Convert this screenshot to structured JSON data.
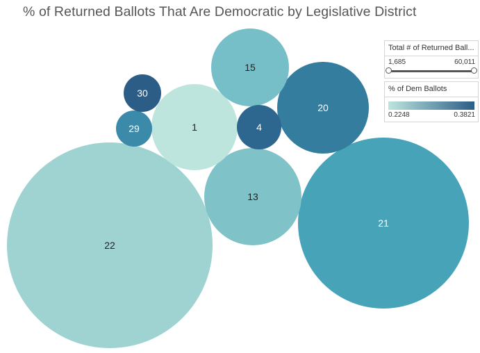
{
  "title": "% of Returned Ballots That Are Democratic by Legislative District",
  "chart_data": {
    "type": "packed-bubble",
    "size_measure": "Total # of Returned Ballots",
    "color_measure": "% of Dem Ballots",
    "bubbles": [
      {
        "label": "22",
        "color": "#9ed3d1"
      },
      {
        "label": "21",
        "color": "#46a3b8"
      },
      {
        "label": "13",
        "color": "#7fc3c8"
      },
      {
        "label": "1",
        "color": "#bde5de"
      },
      {
        "label": "20",
        "color": "#347d9f"
      },
      {
        "label": "15",
        "color": "#76bec8"
      },
      {
        "label": "4",
        "color": "#2d6790"
      },
      {
        "label": "29",
        "color": "#3c8aaa"
      },
      {
        "label": "30",
        "color": "#2b5d86"
      }
    ]
  },
  "legends": {
    "size": {
      "title": "Total # of Returned Ball...",
      "min": "1,685",
      "max": "60,011"
    },
    "color": {
      "title": "% of Dem Ballots",
      "min": "0.2248",
      "max": "0.3821",
      "color_low": "#bde5de",
      "color_high": "#2b5d86"
    }
  }
}
